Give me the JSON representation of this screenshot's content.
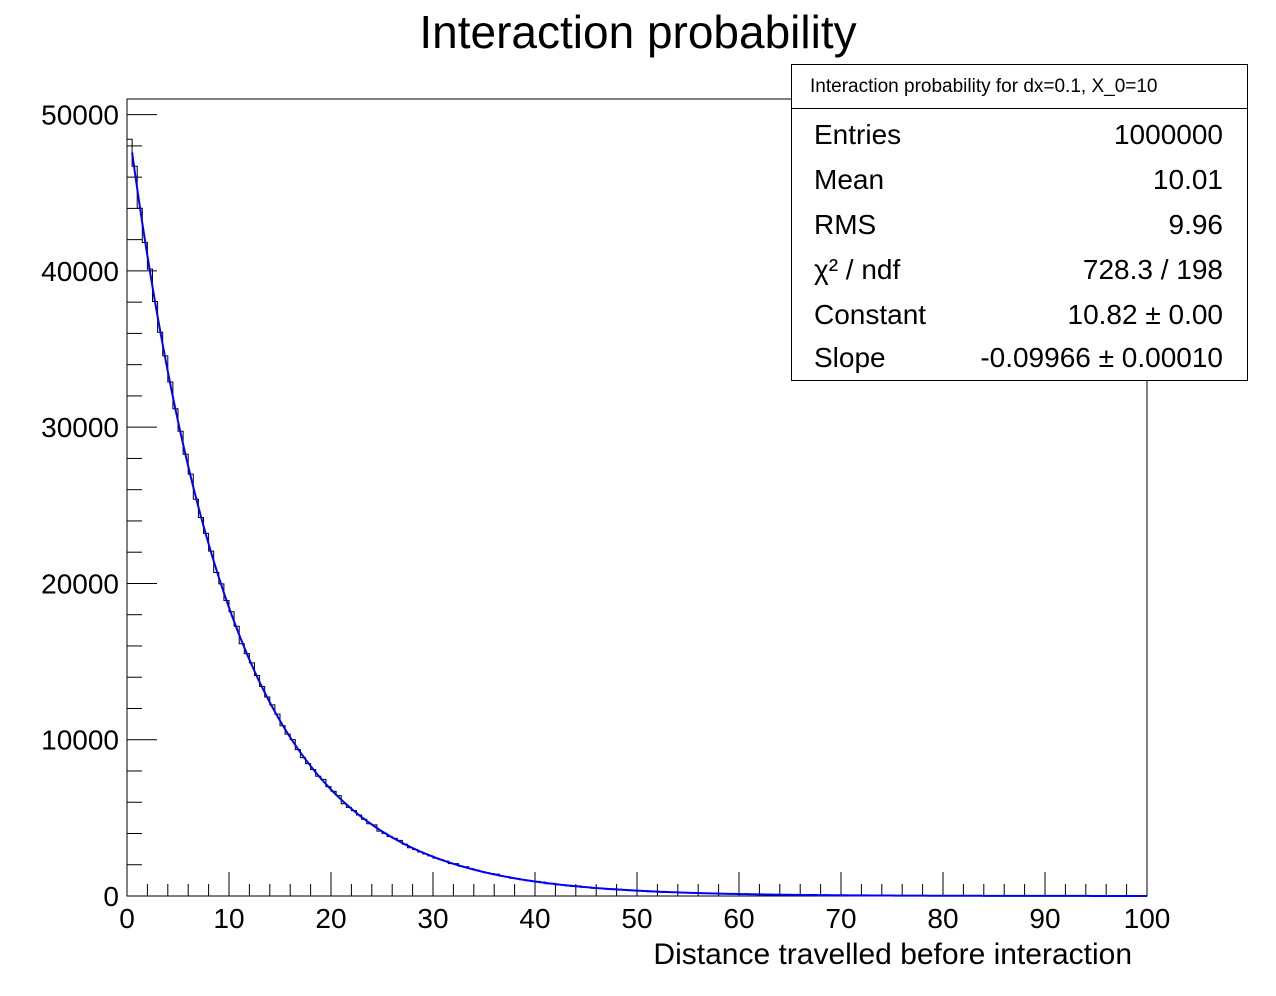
{
  "chart_data": {
    "type": "histogram",
    "title": "Interaction probability",
    "xlabel": "Distance travelled before interaction",
    "ylabel": "",
    "xlim": [
      0,
      100
    ],
    "ylim": [
      0,
      51000
    ],
    "x_ticks": [
      "0",
      "10",
      "20",
      "30",
      "40",
      "50",
      "60",
      "70",
      "80",
      "90",
      "100"
    ],
    "y_ticks": [
      "0",
      "10000",
      "20000",
      "30000",
      "40000",
      "50000"
    ],
    "bin_width": 0.5,
    "fit": {
      "function": "expo",
      "constant": 10.82,
      "slope": -0.09966,
      "color": "#0000ff"
    },
    "histogram_color": "#000000",
    "stats_box": {
      "title": "Interaction probability for dx=0.1, X_0=10",
      "rows": [
        {
          "label": "Entries",
          "value": "1000000"
        },
        {
          "label": "Mean",
          "value": "10.01"
        },
        {
          "label": "RMS",
          "value": "9.96"
        },
        {
          "label": "χ² / ndf",
          "value": "728.3 / 198"
        },
        {
          "label": "Constant",
          "value": "10.82 ± 0.00"
        },
        {
          "label": "Slope",
          "value": "-0.09966 ± 0.00010"
        }
      ]
    }
  }
}
